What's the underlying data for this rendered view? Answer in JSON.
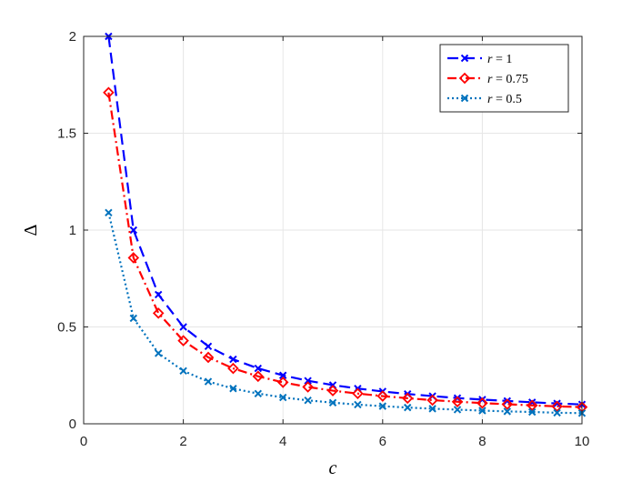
{
  "chart_data": {
    "type": "line",
    "title": "",
    "xlabel": "c",
    "ylabel": "Δ",
    "xlim": [
      0,
      10
    ],
    "ylim": [
      0,
      2
    ],
    "xticks": [
      0,
      2,
      4,
      6,
      8,
      10
    ],
    "yticks": [
      0,
      0.5,
      1,
      1.5,
      2
    ],
    "xtick_labels": [
      "0",
      "2",
      "4",
      "6",
      "8",
      "10"
    ],
    "ytick_labels": [
      "0",
      "0.5",
      "1",
      "1.5",
      "2"
    ],
    "grid": true,
    "legend_position": "top-right",
    "x": [
      0.5,
      1,
      1.5,
      2,
      2.5,
      3,
      3.5,
      4,
      4.5,
      5,
      5.5,
      6,
      6.5,
      7,
      7.5,
      8,
      8.5,
      9,
      9.5,
      10
    ],
    "series": [
      {
        "name": "r = 1",
        "legend_var": "r",
        "legend_val": "= 1",
        "color": "#0000ff",
        "dash": "12,6",
        "marker": "x",
        "values": [
          2.0,
          1.0,
          0.667,
          0.5,
          0.4,
          0.333,
          0.286,
          0.25,
          0.222,
          0.2,
          0.182,
          0.167,
          0.154,
          0.143,
          0.133,
          0.125,
          0.118,
          0.111,
          0.105,
          0.1
        ]
      },
      {
        "name": "r = 0.75",
        "legend_var": "r",
        "legend_val": "= 0.75",
        "color": "#ff0000",
        "dash": "10,4,2,4",
        "marker": "diamond",
        "values": [
          1.71,
          0.857,
          0.571,
          0.429,
          0.343,
          0.286,
          0.245,
          0.214,
          0.19,
          0.171,
          0.156,
          0.143,
          0.132,
          0.122,
          0.114,
          0.107,
          0.101,
          0.095,
          0.09,
          0.086
        ]
      },
      {
        "name": "r = 0.5",
        "legend_var": "r",
        "legend_val": "= 0.5",
        "color": "#0072bd",
        "dash": "2,3",
        "marker": "x",
        "values": [
          1.09,
          0.545,
          0.364,
          0.273,
          0.218,
          0.182,
          0.156,
          0.136,
          0.121,
          0.109,
          0.099,
          0.091,
          0.084,
          0.078,
          0.073,
          0.068,
          0.064,
          0.061,
          0.057,
          0.055
        ]
      }
    ]
  }
}
